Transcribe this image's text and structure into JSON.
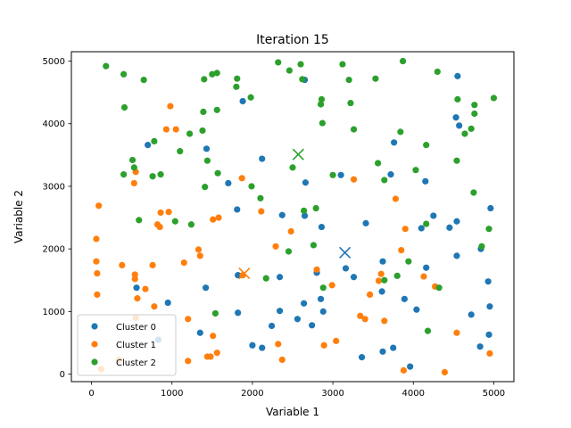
{
  "chart_data": {
    "type": "scatter",
    "title": "Iteration 15",
    "xlabel": "Variable 1",
    "ylabel": "Variable 2",
    "xlim": [
      -250,
      5250
    ],
    "ylim": [
      -120,
      5150
    ],
    "xticks": [
      0,
      1000,
      2000,
      3000,
      4000,
      5000
    ],
    "yticks": [
      0,
      1000,
      2000,
      3000,
      4000,
      5000
    ],
    "xtick_labels": [
      "0",
      "1000",
      "2000",
      "3000",
      "4000",
      "5000"
    ],
    "ytick_labels": [
      "0",
      "1000",
      "2000",
      "3000",
      "4000",
      "5000"
    ],
    "grid": false,
    "legend_position": "lower-left",
    "series": [
      {
        "name": "Cluster 0",
        "color": "#1f77b4",
        "centroid": [
          3150,
          1940
        ],
        "points": [
          [
            4550,
            4760
          ],
          [
            1880,
            4360
          ],
          [
            2650,
            4700
          ],
          [
            4530,
            4100
          ],
          [
            4570,
            3970
          ],
          [
            700,
            3660
          ],
          [
            1430,
            3600
          ],
          [
            3760,
            3700
          ],
          [
            2120,
            3440
          ],
          [
            1700,
            3050
          ],
          [
            3100,
            3180
          ],
          [
            3720,
            3190
          ],
          [
            4150,
            3080
          ],
          [
            4960,
            2650
          ],
          [
            2660,
            3060
          ],
          [
            1810,
            2630
          ],
          [
            2370,
            2540
          ],
          [
            3410,
            2410
          ],
          [
            4250,
            2530
          ],
          [
            2860,
            2350
          ],
          [
            4450,
            2340
          ],
          [
            4540,
            2440
          ],
          [
            2650,
            2530
          ],
          [
            4100,
            2330
          ],
          [
            3160,
            1690
          ],
          [
            4160,
            1700
          ],
          [
            4540,
            1890
          ],
          [
            4840,
            2000
          ],
          [
            3620,
            1800
          ],
          [
            2800,
            1620
          ],
          [
            2340,
            1550
          ],
          [
            3260,
            1550
          ],
          [
            4930,
            1480
          ],
          [
            1820,
            1580
          ],
          [
            560,
            1380
          ],
          [
            3610,
            1320
          ],
          [
            3890,
            1200
          ],
          [
            1420,
            1380
          ],
          [
            950,
            1140
          ],
          [
            2640,
            1130
          ],
          [
            2850,
            1200
          ],
          [
            4040,
            1030
          ],
          [
            4950,
            1080
          ],
          [
            1820,
            980
          ],
          [
            2880,
            1000
          ],
          [
            2340,
            1010
          ],
          [
            4720,
            950
          ],
          [
            2240,
            770
          ],
          [
            2560,
            880
          ],
          [
            2740,
            780
          ],
          [
            1350,
            660
          ],
          [
            4940,
            630
          ],
          [
            2000,
            460
          ],
          [
            2120,
            420
          ],
          [
            3620,
            360
          ],
          [
            3750,
            420
          ],
          [
            4830,
            440
          ],
          [
            3360,
            270
          ],
          [
            3960,
            120
          ],
          [
            830,
            550
          ]
        ]
      },
      {
        "name": "Cluster 1",
        "color": "#ff7f0e",
        "centroid": [
          1900,
          1610
        ],
        "points": [
          [
            980,
            4280
          ],
          [
            930,
            3910
          ],
          [
            1050,
            3910
          ],
          [
            550,
            3230
          ],
          [
            530,
            3050
          ],
          [
            1870,
            3130
          ],
          [
            3260,
            3110
          ],
          [
            3780,
            2800
          ],
          [
            90,
            2690
          ],
          [
            860,
            2580
          ],
          [
            960,
            2590
          ],
          [
            1580,
            2500
          ],
          [
            1510,
            2470
          ],
          [
            2110,
            2600
          ],
          [
            820,
            2390
          ],
          [
            850,
            2350
          ],
          [
            3900,
            2320
          ],
          [
            2480,
            2280
          ],
          [
            60,
            2160
          ],
          [
            1330,
            1990
          ],
          [
            2290,
            2040
          ],
          [
            1350,
            1890
          ],
          [
            3850,
            1980
          ],
          [
            1150,
            1780
          ],
          [
            60,
            1800
          ],
          [
            380,
            1740
          ],
          [
            760,
            1740
          ],
          [
            70,
            1610
          ],
          [
            540,
            1590
          ],
          [
            3600,
            1600
          ],
          [
            4130,
            1560
          ],
          [
            2800,
            1670
          ],
          [
            1880,
            1580
          ],
          [
            540,
            1520
          ],
          [
            3570,
            1490
          ],
          [
            3460,
            1270
          ],
          [
            4270,
            1400
          ],
          [
            670,
            1360
          ],
          [
            2990,
            1420
          ],
          [
            70,
            1270
          ],
          [
            570,
            1210
          ],
          [
            780,
            1080
          ],
          [
            3400,
            880
          ],
          [
            3340,
            930
          ],
          [
            3640,
            850
          ],
          [
            1200,
            880
          ],
          [
            550,
            900
          ],
          [
            1510,
            610
          ],
          [
            2320,
            480
          ],
          [
            2890,
            460
          ],
          [
            3040,
            530
          ],
          [
            1560,
            340
          ],
          [
            1480,
            280
          ],
          [
            1440,
            280
          ],
          [
            2370,
            230
          ],
          [
            1200,
            210
          ],
          [
            4950,
            330
          ],
          [
            4540,
            660
          ],
          [
            4390,
            30
          ],
          [
            3880,
            60
          ],
          [
            340,
            230
          ],
          [
            120,
            80
          ]
        ]
      },
      {
        "name": "Cluster 2",
        "color": "#2ca02c",
        "centroid": [
          2570,
          3510
        ],
        "points": [
          [
            180,
            4920
          ],
          [
            400,
            4790
          ],
          [
            650,
            4700
          ],
          [
            2320,
            4980
          ],
          [
            2460,
            4850
          ],
          [
            2600,
            4950
          ],
          [
            3120,
            4950
          ],
          [
            3870,
            5000
          ],
          [
            4300,
            4830
          ],
          [
            1400,
            4710
          ],
          [
            1500,
            4790
          ],
          [
            1560,
            4810
          ],
          [
            1810,
            4720
          ],
          [
            1800,
            4590
          ],
          [
            2620,
            4710
          ],
          [
            3200,
            4700
          ],
          [
            3530,
            4720
          ],
          [
            5000,
            4410
          ],
          [
            4550,
            4390
          ],
          [
            4760,
            4300
          ],
          [
            1980,
            4420
          ],
          [
            2860,
            4390
          ],
          [
            2850,
            4310
          ],
          [
            3220,
            4330
          ],
          [
            4760,
            4160
          ],
          [
            410,
            4260
          ],
          [
            1390,
            4190
          ],
          [
            1560,
            4220
          ],
          [
            2870,
            4010
          ],
          [
            3260,
            3910
          ],
          [
            3840,
            3870
          ],
          [
            4720,
            3920
          ],
          [
            4640,
            3840
          ],
          [
            1220,
            3840
          ],
          [
            1380,
            3890
          ],
          [
            780,
            3720
          ],
          [
            4160,
            3660
          ],
          [
            1100,
            3560
          ],
          [
            1440,
            3410
          ],
          [
            2500,
            3300
          ],
          [
            3560,
            3370
          ],
          [
            4030,
            3260
          ],
          [
            4540,
            3410
          ],
          [
            3640,
            3100
          ],
          [
            510,
            3420
          ],
          [
            530,
            3300
          ],
          [
            860,
            3190
          ],
          [
            400,
            3190
          ],
          [
            760,
            3160
          ],
          [
            1570,
            3210
          ],
          [
            1410,
            2990
          ],
          [
            3000,
            3180
          ],
          [
            1990,
            3000
          ],
          [
            2100,
            2810
          ],
          [
            2790,
            2650
          ],
          [
            4750,
            2900
          ],
          [
            2640,
            2610
          ],
          [
            590,
            2460
          ],
          [
            1040,
            2440
          ],
          [
            1240,
            2390
          ],
          [
            4160,
            2400
          ],
          [
            4940,
            2320
          ],
          [
            2760,
            2060
          ],
          [
            2450,
            1960
          ],
          [
            4850,
            2040
          ],
          [
            3940,
            1800
          ],
          [
            3640,
            1500
          ],
          [
            3800,
            1570
          ],
          [
            4320,
            1380
          ],
          [
            2880,
            1380
          ],
          [
            2170,
            1530
          ],
          [
            1540,
            970
          ],
          [
            4180,
            690
          ]
        ]
      }
    ]
  }
}
